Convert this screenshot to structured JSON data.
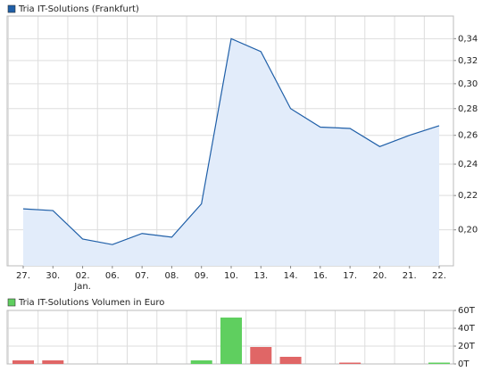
{
  "chart_data": [
    {
      "type": "line",
      "categories": [
        "27.",
        "30.",
        "02.",
        "06.",
        "07.",
        "08.",
        "09.",
        "10.",
        "13.",
        "14.",
        "16.",
        "17.",
        "20.",
        "21.",
        "22."
      ],
      "annotation": "Jan.",
      "series": [
        {
          "name": "Tria IT-Solutions (Frankfurt)",
          "color": "#1f5fa8",
          "fill": "#e2ecfa",
          "values": [
            0.212,
            0.211,
            0.195,
            0.192,
            0.198,
            0.196,
            0.215,
            0.34,
            0.328,
            0.28,
            0.266,
            0.265,
            0.252,
            0.26,
            0.267
          ]
        }
      ],
      "ylim": [
        0.181,
        0.362
      ],
      "log": true,
      "grid": true,
      "yticks": [
        {
          "value": 0.2,
          "label": "0,20"
        },
        {
          "value": 0.22,
          "label": "0,22"
        },
        {
          "value": 0.24,
          "label": "0,24"
        },
        {
          "value": 0.26,
          "label": "0,26"
        },
        {
          "value": 0.28,
          "label": "0,28"
        },
        {
          "value": 0.3,
          "label": "0,30"
        },
        {
          "value": 0.32,
          "label": "0,32"
        },
        {
          "value": 0.34,
          "label": "0,34"
        }
      ]
    },
    {
      "type": "bar",
      "series": [
        {
          "name": "Tria IT-Solutions Volumen in Euro",
          "color": "#5fcf5f",
          "values": [
            4000,
            4000,
            0,
            0,
            0,
            0,
            4000,
            52000,
            19000,
            8000,
            0,
            1500,
            0,
            0,
            1500
          ],
          "colors": [
            "#e06666",
            "#e06666",
            "#e06666",
            "#e06666",
            "#5fcf5f",
            "#e06666",
            "#5fcf5f",
            "#5fcf5f",
            "#e06666",
            "#e06666",
            "#e06666",
            "#e06666",
            "#e06666",
            "#5fcf5f",
            "#5fcf5f"
          ]
        }
      ],
      "ylim": [
        0,
        60000
      ],
      "grid": true,
      "yticks": [
        {
          "value": 0,
          "label": "0T"
        },
        {
          "value": 20000,
          "label": "20T"
        },
        {
          "value": 40000,
          "label": "40T"
        },
        {
          "value": 60000,
          "label": "60T"
        }
      ]
    }
  ]
}
